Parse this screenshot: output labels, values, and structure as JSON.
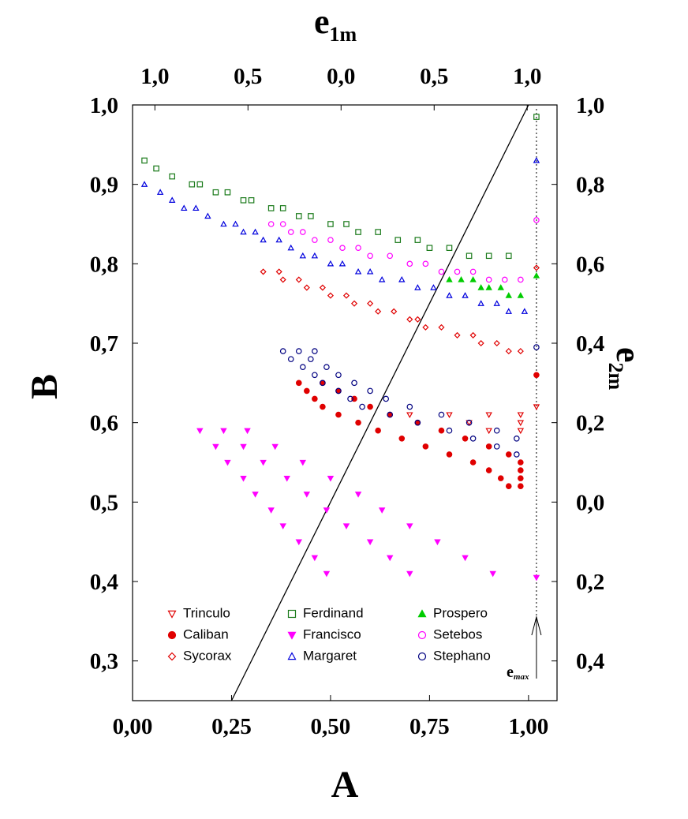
{
  "chart_data": {
    "type": "scatter",
    "xlabel": "A",
    "ylabel": "B",
    "x2label": "e",
    "x2label_sub": "1m",
    "y2label": "e",
    "y2label_sub": "2m",
    "annotation": "e",
    "annotation_sub": "max",
    "xlim": [
      0,
      1.072
    ],
    "ylim": [
      0.25,
      1.0
    ],
    "x2lim": [
      -1.12,
      1.16
    ],
    "y2lim": [
      -0.5,
      1.0
    ],
    "xticks": [
      {
        "value": 0,
        "label": "0,00"
      },
      {
        "value": 0.25,
        "label": "0,25"
      },
      {
        "value": 0.5,
        "label": "0,50"
      },
      {
        "value": 0.75,
        "label": "0,75"
      },
      {
        "value": 1.0,
        "label": "1,00"
      }
    ],
    "yticks": [
      {
        "value": 0.3,
        "label": "0,3"
      },
      {
        "value": 0.4,
        "label": "0,4"
      },
      {
        "value": 0.5,
        "label": "0,5"
      },
      {
        "value": 0.6,
        "label": "0,6"
      },
      {
        "value": 0.7,
        "label": "0,7"
      },
      {
        "value": 0.8,
        "label": "0,8"
      },
      {
        "value": 0.9,
        "label": "0,9"
      },
      {
        "value": 1.0,
        "label": "1,0"
      }
    ],
    "x2ticks": [
      {
        "value": -1,
        "label": "1,0"
      },
      {
        "value": -0.5,
        "label": "0,5"
      },
      {
        "value": 0,
        "label": "0,0"
      },
      {
        "value": 0.5,
        "label": "0,5"
      },
      {
        "value": 1,
        "label": "1,0"
      }
    ],
    "y2ticks": [
      {
        "value": 1.0,
        "label": "1,0"
      },
      {
        "value": 0.8,
        "label": "0,8"
      },
      {
        "value": 0.6,
        "label": "0,6"
      },
      {
        "value": 0.4,
        "label": "0,4"
      },
      {
        "value": 0.2,
        "label": "0,2"
      },
      {
        "value": 0,
        "label": "0,0"
      },
      {
        "value": -0.2,
        "label": "0,2"
      },
      {
        "value": -0.4,
        "label": "0,4"
      }
    ],
    "reference_line": {
      "x": [
        0.25,
        1.0
      ],
      "y": [
        0.25,
        1.0
      ]
    },
    "legend": "lower left",
    "series": [
      {
        "name": "Trinculo",
        "color": "#e00000",
        "marker": "tri-down-open",
        "x": [
          0.7,
          0.8,
          0.9,
          0.98,
          0.85,
          0.98,
          0.9,
          0.98,
          1.02
        ],
        "values": [
          0.61,
          0.61,
          0.61,
          0.61,
          0.6,
          0.6,
          0.59,
          0.59,
          0.62
        ]
      },
      {
        "name": "Caliban",
        "color": "#e00000",
        "marker": "circle-filled",
        "x": [
          0.42,
          0.48,
          0.44,
          0.52,
          0.46,
          0.56,
          0.48,
          0.6,
          0.52,
          0.65,
          0.57,
          0.72,
          0.62,
          0.78,
          0.68,
          0.84,
          0.74,
          0.9,
          0.8,
          0.95,
          0.86,
          0.98,
          0.9,
          0.98,
          0.93,
          0.98,
          0.95,
          0.98,
          1.02
        ],
        "values": [
          0.65,
          0.65,
          0.64,
          0.64,
          0.63,
          0.63,
          0.62,
          0.62,
          0.61,
          0.61,
          0.6,
          0.6,
          0.59,
          0.59,
          0.58,
          0.58,
          0.57,
          0.57,
          0.56,
          0.56,
          0.55,
          0.55,
          0.54,
          0.54,
          0.53,
          0.53,
          0.52,
          0.52,
          0.66
        ]
      },
      {
        "name": "Sycorax",
        "color": "#e00000",
        "marker": "diamond-open",
        "x": [
          0.33,
          0.37,
          0.38,
          0.42,
          0.44,
          0.48,
          0.5,
          0.54,
          0.56,
          0.6,
          0.62,
          0.66,
          0.7,
          0.72,
          0.74,
          0.78,
          0.82,
          0.86,
          0.88,
          0.92,
          0.95,
          0.98,
          1.02
        ],
        "values": [
          0.79,
          0.79,
          0.78,
          0.78,
          0.77,
          0.77,
          0.76,
          0.76,
          0.75,
          0.75,
          0.74,
          0.74,
          0.73,
          0.73,
          0.72,
          0.72,
          0.71,
          0.71,
          0.7,
          0.7,
          0.69,
          0.69,
          0.795
        ]
      },
      {
        "name": "Ferdinand",
        "color": "#1a7a1a",
        "marker": "square-open",
        "x": [
          0.03,
          0.06,
          0.1,
          0.15,
          0.17,
          0.21,
          0.24,
          0.28,
          0.3,
          0.35,
          0.38,
          0.42,
          0.45,
          0.5,
          0.54,
          0.57,
          0.62,
          0.67,
          0.72,
          0.75,
          0.8,
          0.85,
          0.9,
          0.95,
          1.02
        ],
        "values": [
          0.93,
          0.92,
          0.91,
          0.9,
          0.9,
          0.89,
          0.89,
          0.88,
          0.88,
          0.87,
          0.87,
          0.86,
          0.86,
          0.85,
          0.85,
          0.84,
          0.84,
          0.83,
          0.83,
          0.82,
          0.82,
          0.81,
          0.81,
          0.81,
          0.985
        ]
      },
      {
        "name": "Francisco",
        "color": "#ff00ff",
        "marker": "tri-down-filled",
        "x": [
          0.17,
          0.23,
          0.29,
          0.21,
          0.28,
          0.36,
          0.24,
          0.33,
          0.43,
          0.28,
          0.39,
          0.5,
          0.31,
          0.44,
          0.57,
          0.35,
          0.49,
          0.63,
          0.38,
          0.54,
          0.7,
          0.42,
          0.6,
          0.77,
          0.46,
          0.65,
          0.84,
          0.49,
          0.7,
          0.91,
          1.02
        ],
        "values": [
          0.59,
          0.59,
          0.59,
          0.57,
          0.57,
          0.57,
          0.55,
          0.55,
          0.55,
          0.53,
          0.53,
          0.53,
          0.51,
          0.51,
          0.51,
          0.49,
          0.49,
          0.49,
          0.47,
          0.47,
          0.47,
          0.45,
          0.45,
          0.45,
          0.43,
          0.43,
          0.43,
          0.41,
          0.41,
          0.41,
          0.405
        ]
      },
      {
        "name": "Margaret",
        "color": "#0000dd",
        "marker": "tri-up-open",
        "x": [
          0.03,
          0.07,
          0.1,
          0.13,
          0.16,
          0.19,
          0.23,
          0.26,
          0.28,
          0.31,
          0.33,
          0.37,
          0.4,
          0.43,
          0.46,
          0.5,
          0.53,
          0.57,
          0.6,
          0.63,
          0.68,
          0.72,
          0.76,
          0.8,
          0.84,
          0.88,
          0.92,
          0.95,
          0.99,
          1.02
        ],
        "values": [
          0.9,
          0.89,
          0.88,
          0.87,
          0.87,
          0.86,
          0.85,
          0.85,
          0.84,
          0.84,
          0.83,
          0.83,
          0.82,
          0.81,
          0.81,
          0.8,
          0.8,
          0.79,
          0.79,
          0.78,
          0.78,
          0.77,
          0.77,
          0.76,
          0.76,
          0.75,
          0.75,
          0.74,
          0.74,
          0.93
        ]
      },
      {
        "name": "Prospero",
        "color": "#00cc00",
        "marker": "tri-up-filled",
        "x": [
          0.8,
          0.83,
          0.86,
          0.88,
          0.9,
          0.93,
          0.95,
          0.98,
          1.02
        ],
        "values": [
          0.78,
          0.78,
          0.78,
          0.77,
          0.77,
          0.77,
          0.76,
          0.76,
          0.785
        ]
      },
      {
        "name": "Setebos",
        "color": "#ff00ff",
        "marker": "circle-open",
        "x": [
          0.35,
          0.38,
          0.4,
          0.43,
          0.46,
          0.5,
          0.53,
          0.57,
          0.6,
          0.65,
          0.7,
          0.74,
          0.78,
          0.82,
          0.86,
          0.9,
          0.94,
          0.98,
          1.02
        ],
        "values": [
          0.85,
          0.85,
          0.84,
          0.84,
          0.83,
          0.83,
          0.82,
          0.82,
          0.81,
          0.81,
          0.8,
          0.8,
          0.79,
          0.79,
          0.79,
          0.78,
          0.78,
          0.78,
          0.855
        ]
      },
      {
        "name": "Stephano",
        "color": "#000080",
        "marker": "circle-open",
        "x": [
          0.38,
          0.42,
          0.46,
          0.4,
          0.45,
          0.43,
          0.49,
          0.46,
          0.52,
          0.48,
          0.56,
          0.52,
          0.6,
          0.55,
          0.64,
          0.58,
          0.7,
          0.65,
          0.78,
          0.72,
          0.85,
          0.8,
          0.92,
          0.86,
          0.97,
          0.92,
          0.97,
          1.02
        ],
        "values": [
          0.69,
          0.69,
          0.69,
          0.68,
          0.68,
          0.67,
          0.67,
          0.66,
          0.66,
          0.65,
          0.65,
          0.64,
          0.64,
          0.63,
          0.63,
          0.62,
          0.62,
          0.61,
          0.61,
          0.6,
          0.6,
          0.59,
          0.59,
          0.58,
          0.58,
          0.57,
          0.56,
          0.695
        ]
      }
    ]
  }
}
